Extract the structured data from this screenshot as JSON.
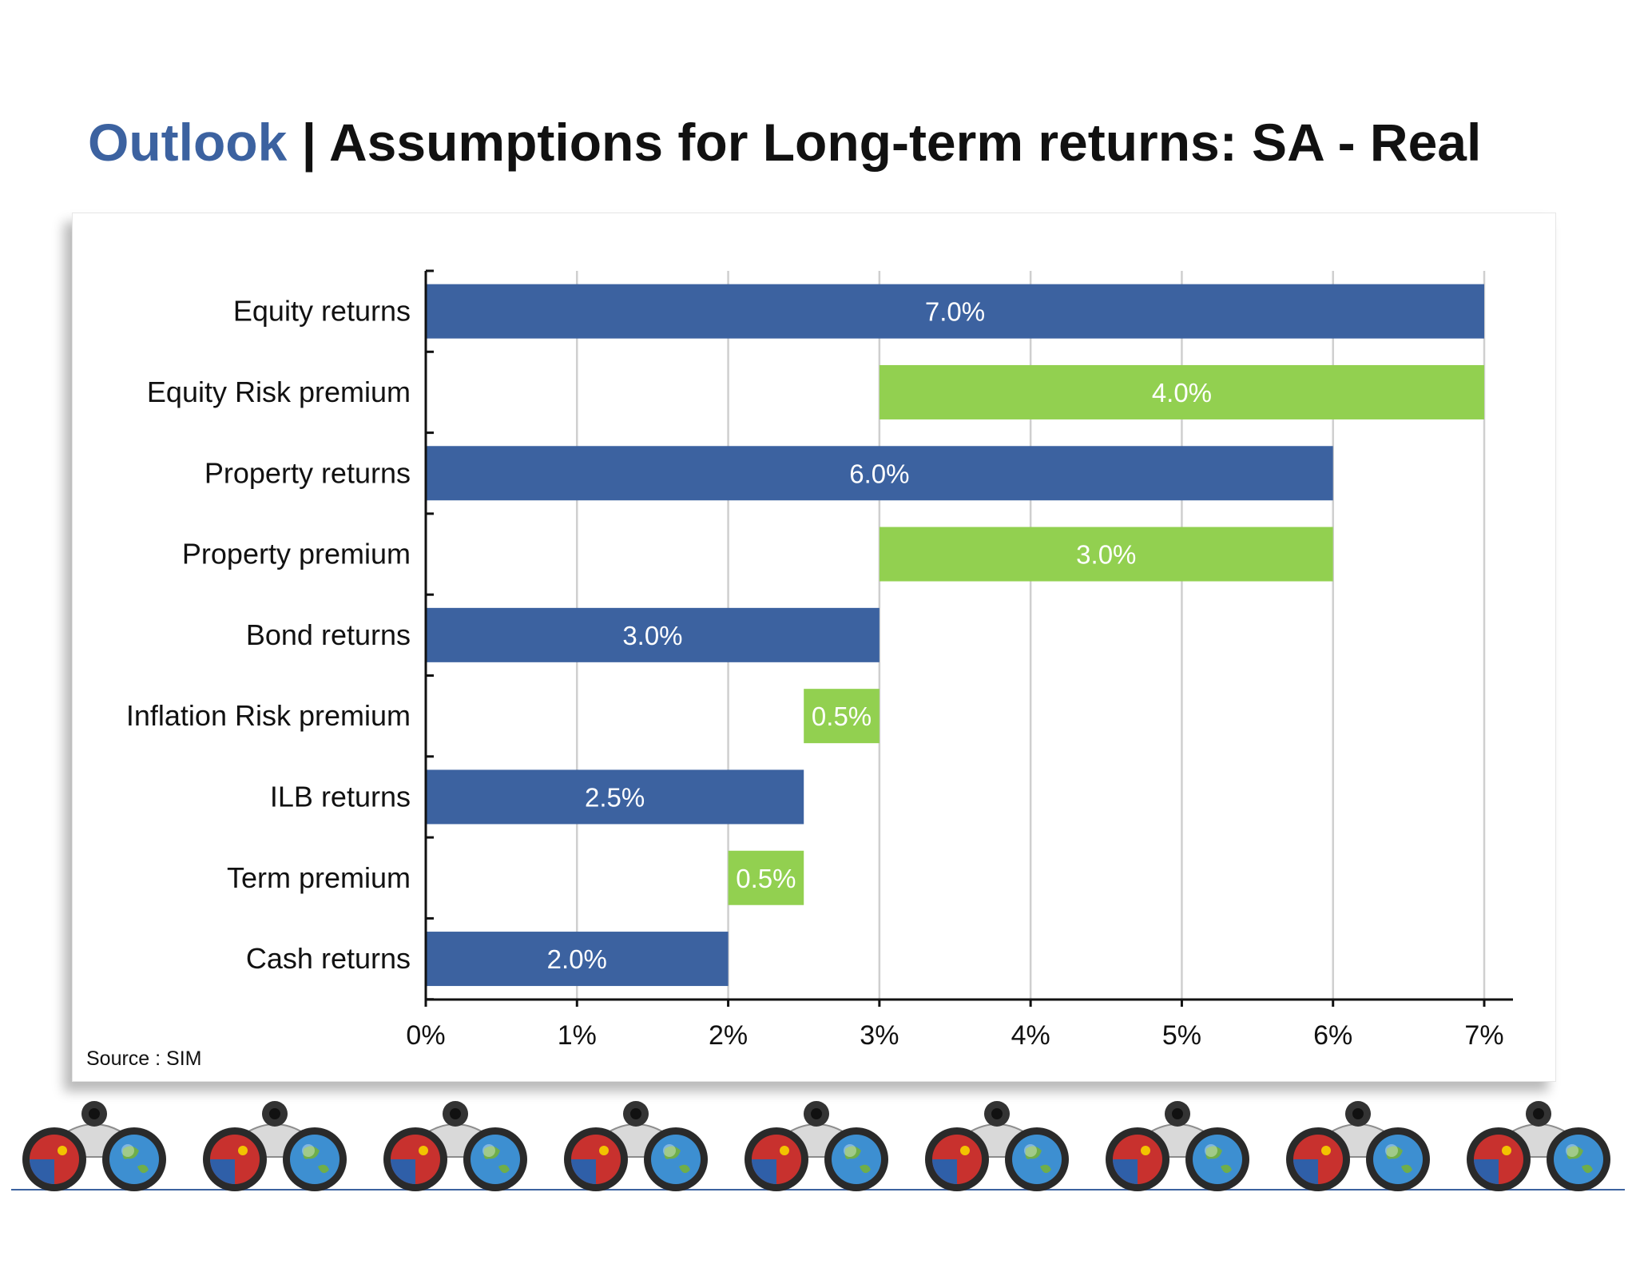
{
  "title": {
    "accent": "Outlook",
    "separator": "|",
    "main": "Assumptions for Long-term returns: SA - Real"
  },
  "source": "Source : SIM",
  "colors": {
    "accent": "#3c62a0",
    "returns_bar": "#3c62a0",
    "premium_bar": "#92d050"
  },
  "chart_data": {
    "type": "bar",
    "orientation": "horizontal",
    "stacking": "floating",
    "title": "",
    "xlabel": "",
    "ylabel": "",
    "xlim": [
      0,
      7
    ],
    "xticks": [
      "0%",
      "1%",
      "2%",
      "3%",
      "4%",
      "5%",
      "6%",
      "7%"
    ],
    "grid": "vertical",
    "legend": "none",
    "categories": [
      "Equity returns",
      "Equity Risk premium",
      "Property returns",
      "Property premium",
      "Bond returns",
      "Inflation Risk premium",
      "ILB returns",
      "Term premium",
      "Cash returns"
    ],
    "bars": [
      {
        "category": "Equity returns",
        "start": 0,
        "value": 7.0,
        "label": "7.0%",
        "kind": "returns"
      },
      {
        "category": "Equity Risk premium",
        "start": 3,
        "value": 4.0,
        "label": "4.0%",
        "kind": "premium"
      },
      {
        "category": "Property returns",
        "start": 0,
        "value": 6.0,
        "label": "6.0%",
        "kind": "returns"
      },
      {
        "category": "Property premium",
        "start": 3,
        "value": 3.0,
        "label": "3.0%",
        "kind": "premium"
      },
      {
        "category": "Bond returns",
        "start": 0,
        "value": 3.0,
        "label": "3.0%",
        "kind": "returns"
      },
      {
        "category": "Inflation Risk premium",
        "start": 2.5,
        "value": 0.5,
        "label": "0.5%",
        "kind": "premium"
      },
      {
        "category": "ILB returns",
        "start": 0,
        "value": 2.5,
        "label": "2.5%",
        "kind": "returns"
      },
      {
        "category": "Term premium",
        "start": 2,
        "value": 0.5,
        "label": "0.5%",
        "kind": "premium"
      },
      {
        "category": "Cash returns",
        "start": 0,
        "value": 2.0,
        "label": "2.0%",
        "kind": "returns"
      }
    ]
  },
  "footer": {
    "icon": "binoculars-icon",
    "repeat": 9
  }
}
